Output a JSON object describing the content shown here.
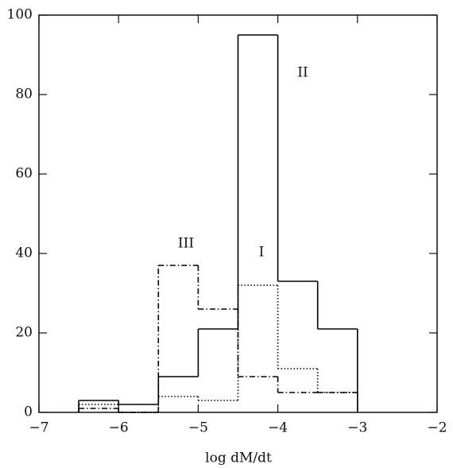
{
  "chart_data": {
    "type": "histogram",
    "x_label": "log dM/dt",
    "bins": [
      -6.5,
      -6,
      -5.5,
      -5,
      -4.5,
      -4,
      -3.5,
      -3
    ],
    "series": [
      {
        "name": "II",
        "color": "#000000",
        "dash": "solid",
        "values": [
          3,
          2,
          9,
          21,
          95,
          33,
          21
        ]
      },
      {
        "name": "I",
        "color": "#000000",
        "dash": "dotted",
        "values": [
          2,
          0,
          4,
          3,
          32,
          11,
          5
        ]
      },
      {
        "name": "III",
        "color": "#000000",
        "dash": "dashdot",
        "values": [
          1,
          0,
          37,
          26,
          9,
          5,
          5
        ]
      }
    ],
    "xlim": [
      -7,
      -2
    ],
    "xticks": [
      {
        "value": -7,
        "label": "−7"
      },
      {
        "value": -6,
        "label": "−6"
      },
      {
        "value": -5,
        "label": "−5"
      },
      {
        "value": -4,
        "label": "−4"
      },
      {
        "value": -3,
        "label": "−3"
      },
      {
        "value": -2,
        "label": "−2"
      }
    ],
    "ylim": [
      0,
      100
    ],
    "yticks": [
      0,
      20,
      40,
      60,
      80,
      100
    ]
  }
}
